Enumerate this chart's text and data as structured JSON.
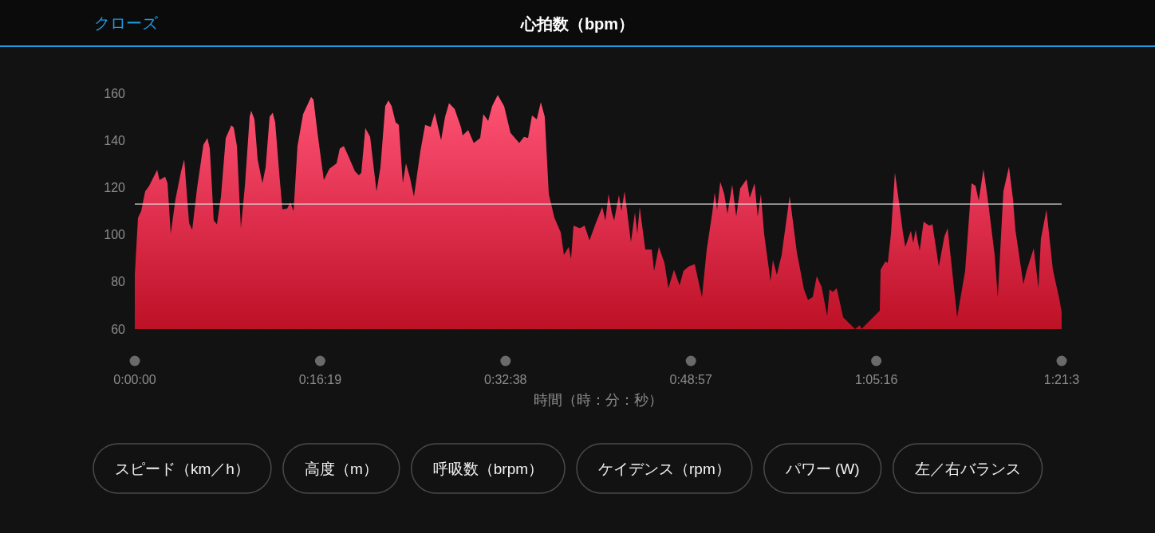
{
  "chart_data": {
    "type": "area",
    "title": "心拍数（bpm）",
    "xlabel": "時間（時：分：秒）",
    "color": "#e0304f",
    "xlim": [
      0,
      1.35972
    ],
    "xticks": [
      {
        "value": 0,
        "label": "0:00:00"
      },
      {
        "value": 0.27194,
        "label": "0:16:19"
      },
      {
        "value": 0.54389,
        "label": "0:32:38"
      },
      {
        "value": 0.81583,
        "label": "0:48:57"
      },
      {
        "value": 1.08778,
        "label": "1:05:16"
      },
      {
        "value": 1.35972,
        "label": "1:21:3"
      }
    ],
    "ylim": [
      60,
      160
    ],
    "yticks": [
      60,
      80,
      100,
      120,
      140,
      160
    ],
    "ref_lines": [
      {
        "axis": "y",
        "value": 113,
        "color": "#d8d8d8"
      }
    ],
    "x": [
      0,
      0.0047,
      0.0094,
      0.0152,
      0.0211,
      0.0328,
      0.0363,
      0.0445,
      0.048,
      0.0527,
      0.0597,
      0.0679,
      0.0725,
      0.0796,
      0.0842,
      0.0913,
      0.1006,
      0.1065,
      0.11,
      0.1158,
      0.1205,
      0.1264,
      0.1334,
      0.1416,
      0.1451,
      0.1498,
      0.1556,
      0.1615,
      0.1685,
      0.1708,
      0.1755,
      0.1802,
      0.1872,
      0.1919,
      0.1978,
      0.2024,
      0.2059,
      0.2118,
      0.2165,
      0.2235,
      0.2282,
      0.2329,
      0.2387,
      0.2469,
      0.2586,
      0.2621,
      0.268,
      0.2773,
      0.2855,
      0.296,
      0.3007,
      0.3066,
      0.3136,
      0.323,
      0.3288,
      0.3323,
      0.3382,
      0.3452,
      0.3546,
      0.3604,
      0.3674,
      0.3721,
      0.3768,
      0.3826,
      0.3873,
      0.3932,
      0.3978,
      0.4037,
      0.4095,
      0.4189,
      0.4259,
      0.4341,
      0.44,
      0.4493,
      0.4552,
      0.461,
      0.4692,
      0.4786,
      0.4809,
      0.4891,
      0.4973,
      0.5067,
      0.5113,
      0.5184,
      0.5242,
      0.5324,
      0.5418,
      0.5511,
      0.564,
      0.571,
      0.5769,
      0.5827,
      0.5897,
      0.5956,
      0.6014,
      0.6073,
      0.6155,
      0.6249,
      0.6295,
      0.6365,
      0.64,
      0.6436,
      0.6529,
      0.6599,
      0.667,
      0.6763,
      0.6857,
      0.6904,
      0.695,
      0.6997,
      0.7032,
      0.7102,
      0.7138,
      0.7185,
      0.7278,
      0.7337,
      0.7372,
      0.7407,
      0.7489,
      0.7583,
      0.7618,
      0.7688,
      0.777,
      0.7828,
      0.791,
      0.7992,
      0.805,
      0.8121,
      0.8214,
      0.832,
      0.839,
      0.8472,
      0.8507,
      0.8542,
      0.8589,
      0.8647,
      0.8694,
      0.8764,
      0.8823,
      0.8881,
      0.8975,
      0.9021,
      0.9092,
      0.9138,
      0.9185,
      0.9232,
      0.9326,
      0.9361,
      0.9419,
      0.9489,
      0.9607,
      0.9712,
      0.9817,
      0.9876,
      0.9946,
      1.0004,
      1.0075,
      1.0157,
      1.0192,
      1.0239,
      1.0297,
      1.0391,
      1.0566,
      1.0636,
      1.066,
      1.0929,
      1.0941,
      1.1011,
      1.1046,
      1.1093,
      1.1151,
      1.121,
      1.1268,
      1.1303,
      1.1385,
      1.142,
      1.1455,
      1.1514,
      1.1572,
      1.1654,
      1.1701,
      1.1795,
      1.1877,
      1.1924,
      1.2064,
      1.2181,
      1.2275,
      1.2333,
      1.238,
      1.245,
      1.2508,
      1.2614,
      1.266,
      1.2742,
      1.2824,
      1.2883,
      1.2918,
      1.3035,
      1.3082,
      1.3187,
      1.3257,
      1.3292,
      1.3374,
      1.3468,
      1.3562,
      1.3597
    ],
    "values": [
      83,
      107.2,
      110,
      118.4,
      120.7,
      127.5,
      123.2,
      124.6,
      121.8,
      100.4,
      115.1,
      126.9,
      132,
      104.9,
      102.1,
      119.6,
      138.1,
      141,
      136.5,
      106,
      104.4,
      116.2,
      141,
      146.4,
      145.5,
      137.6,
      102.7,
      120.7,
      150,
      152.6,
      148.9,
      132,
      121.8,
      128.6,
      150,
      151.7,
      147.7,
      126.3,
      110.8,
      111.1,
      113.7,
      110,
      137.6,
      151.1,
      158.4,
      157.3,
      143.2,
      123.2,
      128,
      130.3,
      136.5,
      137.6,
      133.1,
      126.9,
      125.2,
      126.3,
      145.2,
      141.5,
      118.4,
      128.6,
      154.5,
      157,
      154.5,
      147.7,
      146.6,
      121.8,
      130.3,
      124.1,
      116.2,
      135.3,
      146.6,
      145.7,
      151.7,
      140.1,
      150,
      155.8,
      153.3,
      145.5,
      142.1,
      144.4,
      138.9,
      141,
      151.1,
      148.3,
      154.5,
      159.2,
      154.5,
      143.2,
      138.9,
      141.5,
      141,
      150.5,
      148.9,
      156.2,
      150,
      117.3,
      107.2,
      101,
      91.4,
      94.8,
      89.7,
      103.8,
      102.7,
      103.8,
      97.6,
      104.9,
      111.7,
      106,
      117.3,
      109.4,
      106,
      116.8,
      110,
      118.4,
      96.8,
      109.4,
      100.4,
      111.7,
      93.7,
      93.7,
      84.7,
      94.8,
      88,
      77.3,
      85.2,
      78.5,
      84.7,
      86.4,
      87.5,
      73.4,
      93.7,
      109.4,
      117.9,
      110.6,
      122.4,
      117.3,
      108.9,
      121.2,
      107.7,
      119.6,
      123.5,
      115.6,
      121.8,
      107.7,
      117.3,
      100.4,
      80.2,
      89.2,
      83,
      91.4,
      116.4,
      92.5,
      76.8,
      72.3,
      73.6,
      82.4,
      77.9,
      65.5,
      76.8,
      75.7,
      77.3,
      65,
      60,
      61.6,
      60,
      67.8,
      85.2,
      88.6,
      88,
      100.4,
      126.3,
      114,
      101,
      94.8,
      101.6,
      96.5,
      102.1,
      93.1,
      105.5,
      103.8,
      104.4,
      86.4,
      99.3,
      102.7,
      65,
      84.7,
      121.8,
      120.7,
      114.5,
      127.7,
      116.2,
      91.4,
      73.4,
      118.4,
      128.8,
      115.1,
      102.1,
      79,
      84.7,
      94.2,
      77.3,
      98.2,
      110.6,
      85.2,
      72.8,
      67.2
    ],
    "annotations": [
      "クローズ",
      "スピード（km／h）",
      "高度（m）",
      "呼吸数（brpm）",
      "ケイデンス（rpm）",
      "パワー (W)",
      "左／右バランス"
    ]
  }
}
